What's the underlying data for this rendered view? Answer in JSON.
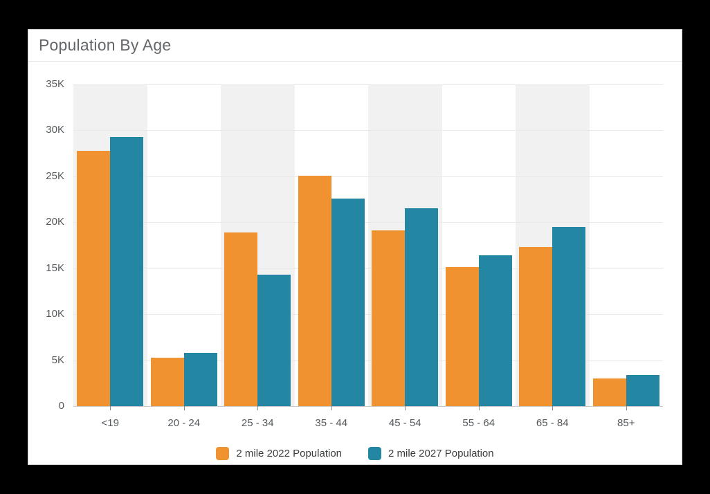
{
  "card": {
    "title": "Population By Age"
  },
  "chart_data": {
    "type": "bar",
    "title": "Population By Age",
    "categories": [
      "<19",
      "20 - 24",
      "25 - 34",
      "35 - 44",
      "45 - 54",
      "55 - 64",
      "65 - 84",
      "85+"
    ],
    "series": [
      {
        "name": "2 mile 2022 Population",
        "color": "#F0922F",
        "values": [
          27800,
          5300,
          18900,
          25100,
          19100,
          15100,
          17300,
          3000
        ]
      },
      {
        "name": "2 mile 2027 Population",
        "color": "#2386A2",
        "values": [
          29300,
          5800,
          14300,
          22600,
          21500,
          16400,
          19500,
          3400
        ]
      }
    ],
    "xlabel": "",
    "ylabel": "",
    "ylim": [
      0,
      35000
    ],
    "ytick_step": 5000,
    "ytick_labels": [
      "0",
      "5K",
      "10K",
      "15K",
      "20K",
      "25K",
      "30K",
      "35K"
    ],
    "grid": true,
    "legend_position": "bottom",
    "alternating_column_bands": true,
    "band_color": "#f1f1f1"
  },
  "colors": {
    "page_background": "#000000",
    "card_background": "#ffffff",
    "gridline": "#e9e9e9",
    "axis_text": "#55595c",
    "title_text": "#64686b"
  }
}
